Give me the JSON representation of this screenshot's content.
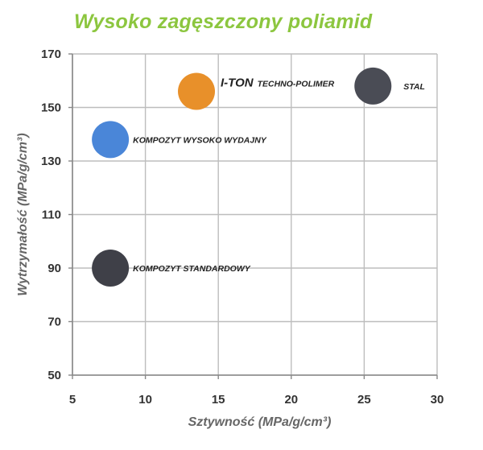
{
  "title": "Wysoko zagęszczony poliamid",
  "chart_data": {
    "type": "scatter",
    "title": "Wysoko zagęszczony poliamid",
    "xlabel": "Sztywność (MPa/g/cm³)",
    "ylabel": "Wytrzymałość  (MPa/g/cm³)",
    "xlim": [
      5,
      30
    ],
    "ylim": [
      50,
      170
    ],
    "x_ticks": [
      5,
      10,
      15,
      20,
      25,
      30
    ],
    "y_ticks": [
      50,
      70,
      90,
      110,
      130,
      150,
      170
    ],
    "grid": true,
    "points": [
      {
        "x": 13.5,
        "y": 156,
        "brand": "I-TON",
        "label": "TECHNO-POLIMER",
        "color": "#e8902a"
      },
      {
        "x": 25.6,
        "y": 158,
        "brand": "",
        "label": "STAL",
        "color": "#4a4c55"
      },
      {
        "x": 7.6,
        "y": 138,
        "brand": "",
        "label": "KOMPOZYT WYSOKO WYDAJNY",
        "color": "#4a86d8"
      },
      {
        "x": 7.6,
        "y": 90,
        "brand": "",
        "label": "KOMPOZYT STANDARDOWY",
        "color": "#3f4048"
      }
    ]
  }
}
